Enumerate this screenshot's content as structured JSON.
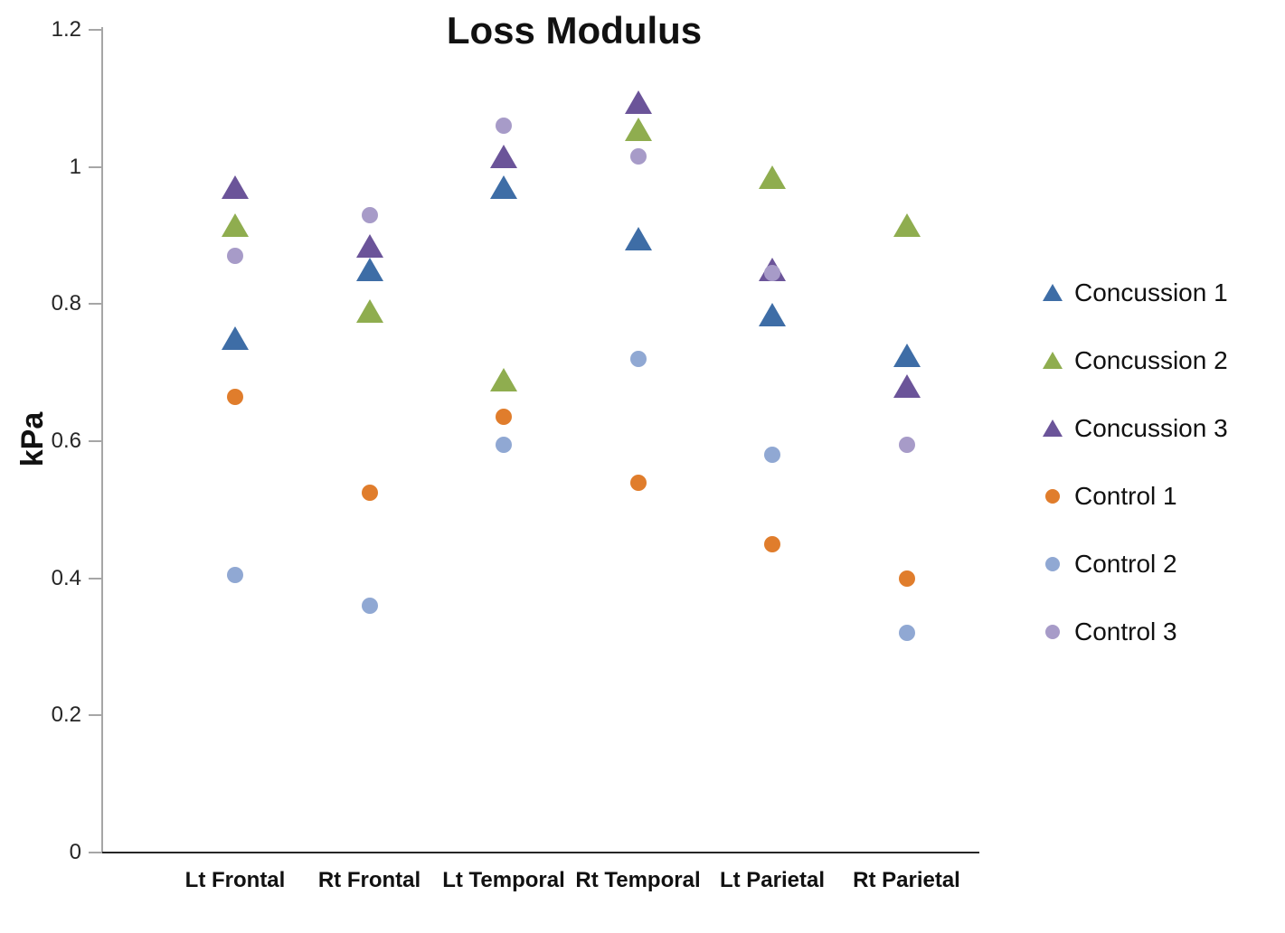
{
  "chart_data": {
    "type": "scatter",
    "title": "Loss Modulus",
    "ylabel": "kPa",
    "xlabel": "",
    "ylim": [
      0,
      1.2
    ],
    "yticks": [
      0,
      0.2,
      0.4,
      0.6,
      0.8,
      1,
      1.2
    ],
    "ytick_labels": [
      "0",
      "0.2",
      "0.4",
      "0.6",
      "0.8",
      "1",
      "1.2"
    ],
    "grid": false,
    "legend_position": "right",
    "categories": [
      "Lt Frontal",
      "Rt Frontal",
      "Lt Temporal",
      "Rt Temporal",
      "Lt Parietal",
      "Rt Parietal"
    ],
    "series": [
      {
        "name": "Concussion 1",
        "marker": "triangle",
        "color": "#3e6da6",
        "values": [
          0.75,
          0.85,
          0.97,
          0.895,
          0.785,
          0.725
        ]
      },
      {
        "name": "Concussion 2",
        "marker": "triangle",
        "color": "#8fad4f",
        "values": [
          0.915,
          0.79,
          0.69,
          1.055,
          0.985,
          0.915
        ]
      },
      {
        "name": "Concussion 3",
        "marker": "triangle",
        "color": "#6b5499",
        "values": [
          0.97,
          0.885,
          1.015,
          1.095,
          0.85,
          0.68
        ]
      },
      {
        "name": "Control 1",
        "marker": "circle",
        "color": "#e07d2c",
        "values": [
          0.665,
          0.525,
          0.635,
          0.54,
          0.45,
          0.4
        ]
      },
      {
        "name": "Control 2",
        "marker": "circle",
        "color": "#90a8d3",
        "values": [
          0.405,
          0.36,
          0.595,
          0.72,
          0.58,
          0.32
        ]
      },
      {
        "name": "Control 3",
        "marker": "circle",
        "color": "#a79bc8",
        "values": [
          0.87,
          0.93,
          1.06,
          1.015,
          0.845,
          0.595
        ]
      }
    ]
  }
}
